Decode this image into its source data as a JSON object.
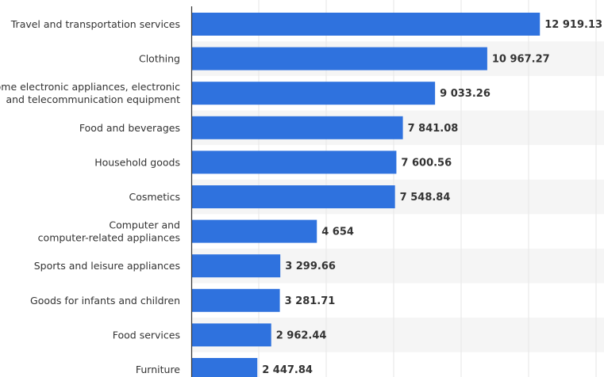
{
  "chart_data": {
    "type": "bar",
    "orientation": "horizontal",
    "categories": [
      [
        "Travel and transportation services"
      ],
      [
        "Clothing"
      ],
      [
        "Home electronic appliances, electronic",
        "and telecommunication equipment"
      ],
      [
        "Food and beverages"
      ],
      [
        "Household goods"
      ],
      [
        "Cosmetics"
      ],
      [
        "Computer and",
        "computer-related appliances"
      ],
      [
        "Sports and leisure appliances"
      ],
      [
        "Goods for infants and children"
      ],
      [
        "Food services"
      ],
      [
        "Furniture"
      ]
    ],
    "values": [
      12919.13,
      10967.27,
      9033.26,
      7841.08,
      7600.56,
      7548.84,
      4654,
      3299.66,
      3281.71,
      2962.44,
      2447.84
    ],
    "value_labels": [
      "12 919.13",
      "10 967.27",
      "9 033.26",
      "7 841.08",
      "7 600.56",
      "7 548.84",
      "4 654",
      "3 299.66",
      "3 281.71",
      "2 962.44",
      "2 447.84"
    ],
    "xlim": [
      0,
      15000
    ],
    "grid": true,
    "bar_color": "#2f72de",
    "stripe_color": "#f5f5f5"
  }
}
